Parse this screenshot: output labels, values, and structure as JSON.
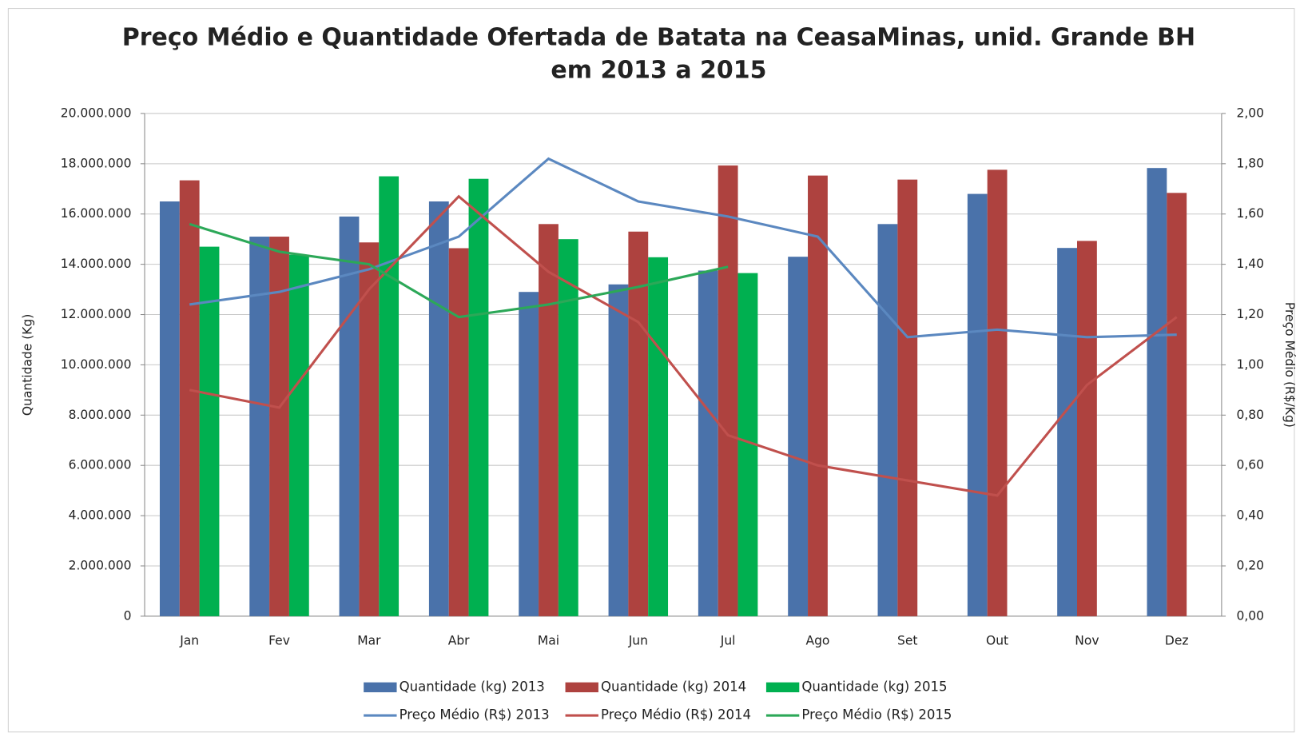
{
  "chart_data": {
    "type": "bar",
    "title": [
      "Preço Médio e Quantidade Ofertada de Batata na CeasaMinas, unid. Grande BH",
      "em 2013 a 2015"
    ],
    "y_label": "Quantidade (Kg)",
    "y2_label": "Preço Médio (R$/Kg)",
    "categories": [
      "Jan",
      "Fev",
      "Mar",
      "Abr",
      "Mai",
      "Jun",
      "Jul",
      "Ago",
      "Set",
      "Out",
      "Nov",
      "Dez"
    ],
    "ylim": [
      0,
      20000000
    ],
    "yticks": [
      0,
      {
        "value": 2000000,
        "label": "2.000.000"
      },
      {
        "value": 4000000,
        "label": "4.000.000"
      },
      {
        "value": 6000000,
        "label": "6.000.000"
      },
      {
        "value": 8000000,
        "label": "8.000.000"
      },
      {
        "value": 10000000,
        "label": "10.000.000"
      },
      {
        "value": 12000000,
        "label": "12.000.000"
      },
      {
        "value": 14000000,
        "label": "14.000.000"
      },
      {
        "value": 16000000,
        "label": "16.000.000"
      },
      {
        "value": 18000000,
        "label": "18.000.000"
      },
      {
        "value": 20000000,
        "label": "20.000.000"
      }
    ],
    "y2lim": [
      0,
      2
    ],
    "y2ticks": [
      {
        "value": 0,
        "label": "0,00"
      },
      {
        "value": 0.2,
        "label": "0,20"
      },
      {
        "value": 0.4,
        "label": "0,40"
      },
      {
        "value": 0.6,
        "label": "0,60"
      },
      {
        "value": 0.8,
        "label": "0,80"
      },
      {
        "value": 1,
        "label": "1,00"
      },
      {
        "value": 1.2,
        "label": "1,20"
      },
      {
        "value": 1.4,
        "label": "1,40"
      },
      {
        "value": 1.6,
        "label": "1,60"
      },
      {
        "value": 1.8,
        "label": "1,80"
      },
      {
        "value": 2,
        "label": "2,00"
      }
    ],
    "grid": true,
    "series": [
      {
        "name": "Quantidade (kg) 2013",
        "type": "bar",
        "color": "#4a72aa",
        "values": [
          16500000,
          15100000,
          15900000,
          16500000,
          12900000,
          13200000,
          13750000,
          14300000,
          15600000,
          16800000,
          14650000,
          17830000
        ]
      },
      {
        "name": "Quantidade (kg) 2014",
        "type": "bar",
        "color": "#ae423f",
        "values": [
          17340000,
          15100000,
          14870000,
          14640000,
          15600000,
          15300000,
          17930000,
          17530000,
          17370000,
          17760000,
          14930000,
          16840000
        ]
      },
      {
        "name": "Quantidade (kg) 2015",
        "type": "bar",
        "color": "#00b050",
        "values": [
          14700000,
          14380000,
          17500000,
          17400000,
          15000000,
          14280000,
          13650000,
          null,
          null,
          null,
          null,
          null
        ]
      },
      {
        "name": "Preço Médio (R$) 2013",
        "type": "line",
        "axis": "y2",
        "color": "#5b88c0",
        "values": [
          1.24,
          1.29,
          1.38,
          1.51,
          1.82,
          1.65,
          1.59,
          1.51,
          1.11,
          1.14,
          1.11,
          1.12
        ]
      },
      {
        "name": "Preço Médio (R$) 2014",
        "type": "line",
        "axis": "y2",
        "color": "#c0504d",
        "values": [
          0.9,
          0.83,
          1.3,
          1.67,
          1.37,
          1.17,
          0.72,
          0.6,
          0.54,
          0.48,
          0.92,
          1.19
        ]
      },
      {
        "name": "Preço Médio (R$) 2015",
        "type": "line",
        "axis": "y2",
        "color": "#2ca858",
        "values": [
          1.56,
          1.45,
          1.4,
          1.19,
          1.24,
          1.31,
          1.39,
          null,
          null,
          null,
          null,
          null
        ]
      }
    ]
  }
}
